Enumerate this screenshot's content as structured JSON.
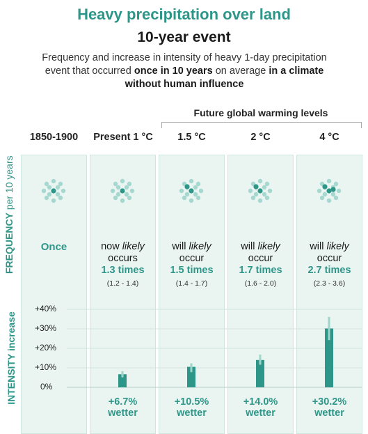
{
  "header": {
    "title": "Heavy precipitation over land",
    "subtitle": "10-year event",
    "desc_1": "Frequency and increase in intensity of heavy 1-day precipitation event that occurred",
    "desc_2": "once in 10 years",
    "desc_3": "on average",
    "desc_4": "in a climate without human influence"
  },
  "future_label": "Future global warming levels",
  "axes": {
    "frequency_label_big": "FREQUENCY",
    "frequency_label_small": "per 10 years",
    "intensity_label": "INTENSITY increase"
  },
  "columns": [
    {
      "head": "1850-1900",
      "freq_word": "Once"
    },
    {
      "head": "Present 1 °C",
      "verb": "now",
      "likely": "likely",
      "verb2": "occurs",
      "times": "1.3 times",
      "range": "(1.2 - 1.4)",
      "wetter_value": "+6.7%",
      "wetter_word": "wetter"
    },
    {
      "head": "1.5 °C",
      "verb": "will",
      "likely": "likely",
      "verb2": "occur",
      "times": "1.5 times",
      "range": "(1.4 - 1.7)",
      "wetter_value": "+10.5%",
      "wetter_word": "wetter"
    },
    {
      "head": "2 °C",
      "verb": "will",
      "likely": "likely",
      "verb2": "occur",
      "times": "1.7 times",
      "range": "(1.6 - 2.0)",
      "wetter_value": "+14.0%",
      "wetter_word": "wetter"
    },
    {
      "head": "4 °C",
      "verb": "will",
      "likely": "likely",
      "verb2": "occur",
      "times": "2.7 times",
      "range": "(2.3 - 3.6)",
      "wetter_value": "+30.2%",
      "wetter_word": "wetter"
    }
  ],
  "colors": {
    "accent": "#2e9688",
    "panel_bg": "#eaf5f2",
    "bar": "#2e9688",
    "error_bar": "#9fd4cb",
    "dot_light": "#a6d8cf",
    "dot_dark": "#2e9688"
  },
  "chart_data": {
    "type": "bar",
    "categories": [
      "1850-1900",
      "Present 1 °C",
      "1.5 °C",
      "2 °C",
      "4 °C"
    ],
    "series": [
      {
        "values": [
          0,
          6.7,
          10.5,
          14.0,
          30.2
        ],
        "low": [
          null,
          5.1,
          7.8,
          11.6,
          24.2
        ],
        "high": [
          null,
          8.3,
          12.3,
          16.8,
          36.1
        ]
      }
    ],
    "frequency": [
      1,
      1.3,
      1.5,
      1.7,
      2.7
    ],
    "frequency_dots_highlight": [
      1,
      1,
      2,
      2,
      3
    ],
    "ylim": [
      0,
      40
    ],
    "yticks": [
      "0%",
      "+10%",
      "+20%",
      "+30%",
      "+40%"
    ],
    "ytick_values": [
      0,
      10,
      20,
      30,
      40
    ],
    "grid": true
  }
}
